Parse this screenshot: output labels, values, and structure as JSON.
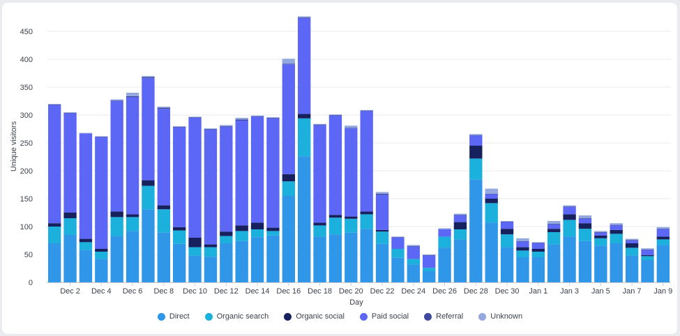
{
  "chart_data": {
    "type": "bar",
    "stacked": true,
    "xlabel": "Day",
    "ylabel": "Unique visitors",
    "ylim": [
      0,
      475
    ],
    "yticks": [
      0,
      50,
      100,
      150,
      200,
      250,
      300,
      350,
      400,
      450
    ],
    "grid": true,
    "legend_position": "bottom",
    "categories": [
      "Dec 1",
      "Dec 2",
      "Dec 3",
      "Dec 4",
      "Dec 5",
      "Dec 6",
      "Dec 7",
      "Dec 8",
      "Dec 9",
      "Dec 10",
      "Dec 11",
      "Dec 12",
      "Dec 13",
      "Dec 14",
      "Dec 15",
      "Dec 16",
      "Dec 17",
      "Dec 18",
      "Dec 19",
      "Dec 20",
      "Dec 21",
      "Dec 22",
      "Dec 23",
      "Dec 24",
      "Dec 25",
      "Dec 26",
      "Dec 27",
      "Dec 28",
      "Dec 29",
      "Dec 30",
      "Dec 31",
      "Jan 1",
      "Jan 2",
      "Jan 3",
      "Jan 4",
      "Jan 5",
      "Jan 6",
      "Jan 7",
      "Jan 8",
      "Jan 9"
    ],
    "tick_labels": [
      "",
      "Dec 2",
      "",
      "Dec 4",
      "",
      "Dec 6",
      "",
      "Dec 8",
      "",
      "Dec 10",
      "",
      "Dec 12",
      "",
      "Dec 14",
      "",
      "Dec 16",
      "",
      "Dec 18",
      "",
      "Dec 20",
      "",
      "Dec 22",
      "",
      "Dec 24",
      "",
      "Dec 26",
      "",
      "Dec 28",
      "",
      "Dec 30",
      "",
      "Jan 1",
      "",
      "Jan 3",
      "",
      "Jan 5",
      "",
      "Jan 7",
      "",
      "Jan 9"
    ],
    "series": [
      {
        "name": "Direct",
        "color": "#2f96e8",
        "values": [
          70,
          85,
          58,
          42,
          83,
          92,
          131,
          89,
          69,
          48,
          46,
          70,
          74,
          81,
          84,
          155,
          226,
          82,
          86,
          89,
          96,
          69,
          44,
          32,
          20,
          62,
          77,
          184,
          107,
          63,
          45,
          45,
          68,
          82,
          74,
          66,
          70,
          48,
          40,
          67
        ]
      },
      {
        "name": "Organic search",
        "color": "#1cb0dc",
        "values": [
          30,
          30,
          14,
          13,
          34,
          25,
          42,
          42,
          24,
          15,
          17,
          13,
          18,
          14,
          8,
          26,
          68,
          20,
          30,
          25,
          26,
          22,
          16,
          10,
          6,
          20,
          18,
          38,
          35,
          23,
          12,
          10,
          22,
          30,
          22,
          13,
          17,
          14,
          7,
          10
        ]
      },
      {
        "name": "Organic social",
        "color": "#16215e",
        "values": [
          6,
          10,
          6,
          5,
          10,
          5,
          10,
          7,
          6,
          17,
          5,
          8,
          10,
          12,
          6,
          13,
          8,
          5,
          5,
          4,
          5,
          3,
          0,
          0,
          0,
          0,
          13,
          23,
          8,
          10,
          6,
          5,
          6,
          10,
          10,
          5,
          7,
          8,
          2,
          5
        ]
      },
      {
        "name": "Paid social",
        "color": "#5c68f5",
        "values": [
          212,
          178,
          189,
          200,
          198,
          210,
          183,
          173,
          179,
          215,
          206,
          188,
          188,
          190,
          196,
          197,
          172,
          175,
          178,
          158,
          180,
          63,
          20,
          22,
          22,
          13,
          12,
          18,
          8,
          12,
          10,
          10,
          8,
          13,
          8,
          5,
          8,
          5,
          9,
          13
        ]
      },
      {
        "name": "Referral",
        "color": "#3f4a9e",
        "values": [
          1,
          1,
          0,
          1,
          1,
          2,
          2,
          2,
          1,
          1,
          1,
          1,
          2,
          1,
          1,
          1,
          1,
          1,
          1,
          1,
          1,
          2,
          1,
          1,
          1,
          0,
          1,
          1,
          1,
          1,
          1,
          1,
          1,
          1,
          1,
          1,
          1,
          1,
          1,
          1
        ]
      },
      {
        "name": "Unknown",
        "color": "#94a9e0",
        "values": [
          1,
          1,
          1,
          1,
          2,
          6,
          2,
          2,
          1,
          1,
          1,
          2,
          3,
          1,
          1,
          9,
          2,
          1,
          1,
          4,
          1,
          3,
          1,
          2,
          1,
          2,
          2,
          2,
          9,
          1,
          5,
          1,
          5,
          2,
          5,
          2,
          3,
          2,
          2,
          3
        ]
      }
    ]
  }
}
